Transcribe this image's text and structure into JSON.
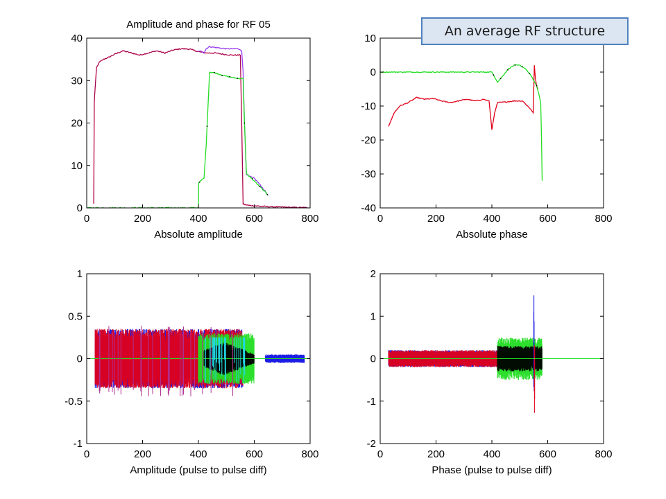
{
  "callout": {
    "text": "An average RF structure"
  },
  "colors": {
    "red": "#e0001a",
    "blue": "#1010e6",
    "green": "#22dd22",
    "purple": "#9a3cf0",
    "black": "#000000",
    "cyan": "#22d6e6",
    "magenta": "#b03090"
  },
  "chart_data": [
    {
      "type": "line",
      "title": "Amplitude and phase for RF 05",
      "xlabel": "Absolute amplitude",
      "ylabel": "",
      "xlim": [
        0,
        800
      ],
      "ylim": [
        0,
        40
      ],
      "xticks": [
        0,
        200,
        400,
        600,
        800
      ],
      "yticks": [
        0,
        10,
        20,
        30,
        40
      ],
      "grid": false,
      "series": [
        {
          "color": "#e0001a",
          "x": [
            25,
            27,
            35,
            45,
            60,
            80,
            100,
            130,
            160,
            190,
            220,
            250,
            280,
            310,
            340,
            370,
            400,
            430,
            460,
            490,
            520,
            550,
            555,
            560,
            565,
            580,
            600,
            650,
            700,
            750,
            790
          ],
          "values": [
            1,
            25,
            33,
            34.3,
            35,
            35.5,
            36.2,
            37,
            36.5,
            36,
            36.5,
            37,
            36.5,
            37.2,
            37.5,
            37.4,
            36.8,
            36.5,
            36.5,
            36.2,
            36,
            36,
            20,
            1,
            0.8,
            0.6,
            0.5,
            0.3,
            0.2,
            0.1,
            0.1
          ]
        },
        {
          "color": "#9a3cf0",
          "x": [
            400,
            410,
            420,
            428,
            440,
            460,
            500,
            540,
            555,
            560,
            565,
            572,
            580,
            600,
            620,
            650
          ],
          "values": [
            36.8,
            37,
            36.5,
            37.5,
            38,
            37.8,
            37.5,
            37.5,
            37,
            32,
            20,
            8,
            7.5,
            7,
            5.5,
            3
          ]
        },
        {
          "color": "#22dd22",
          "x": [
            0,
            400,
            401,
            420,
            428,
            440,
            460,
            500,
            540,
            560,
            565,
            572,
            590,
            620,
            650
          ],
          "values": [
            0,
            0,
            6,
            7,
            15,
            32,
            31.8,
            31,
            30.5,
            30.5,
            20,
            8,
            7,
            5,
            3
          ]
        }
      ]
    },
    {
      "type": "line",
      "title": "",
      "xlabel": "Absolute phase",
      "ylabel": "",
      "xlim": [
        0,
        800
      ],
      "ylim": [
        -40,
        10
      ],
      "xticks": [
        0,
        200,
        400,
        600,
        800
      ],
      "yticks": [
        -40,
        -30,
        -20,
        -10,
        0,
        10
      ],
      "grid": false,
      "series": [
        {
          "color": "#e0001a",
          "x": [
            30,
            50,
            70,
            100,
            130,
            160,
            190,
            220,
            250,
            280,
            310,
            340,
            370,
            390,
            400,
            410,
            420,
            450,
            480,
            510,
            540,
            548,
            552,
            556,
            560,
            565
          ],
          "values": [
            -16,
            -12,
            -10,
            -9,
            -7.5,
            -8,
            -7.8,
            -8.5,
            -9,
            -8.5,
            -8,
            -8.5,
            -8,
            -8.5,
            -17,
            -12,
            -9,
            -8.8,
            -8.5,
            -8.5,
            -11,
            -12,
            2,
            -2,
            -4,
            -5
          ]
        },
        {
          "color": "#22dd22",
          "x": [
            0,
            400,
            420,
            440,
            460,
            480,
            500,
            520,
            540,
            560,
            570,
            575,
            578,
            580
          ],
          "values": [
            0,
            0,
            -3,
            -1,
            1,
            2,
            2,
            1,
            -1,
            -4,
            -7,
            -9,
            -20,
            -32
          ]
        }
      ]
    },
    {
      "type": "line",
      "title": "",
      "xlabel": "Amplitude (pulse to pulse diff)",
      "ylabel": "",
      "xlim": [
        0,
        800
      ],
      "ylim": [
        -1,
        1
      ],
      "xticks": [
        0,
        200,
        400,
        600,
        800
      ],
      "yticks": [
        -1,
        -0.5,
        0,
        0.5,
        1
      ],
      "grid": false,
      "series": [
        {
          "color": "#1010e6",
          "x": [
            30,
            560
          ],
          "values": [
            -0.35,
            0.35
          ]
        },
        {
          "color": "#e0001a",
          "x": [
            30,
            560
          ],
          "values": [
            -0.35,
            0.35
          ]
        },
        {
          "color": "#22dd22",
          "x": [
            400,
            600
          ],
          "values": [
            -0.3,
            0.3
          ]
        },
        {
          "color": "#000000",
          "x": [
            420,
            600
          ],
          "values": [
            -0.2,
            0.2
          ]
        },
        {
          "color": "#1010e6",
          "x": [
            640,
            780
          ],
          "values": [
            -0.05,
            0.05
          ]
        }
      ]
    },
    {
      "type": "line",
      "title": "",
      "xlabel": "Phase (pulse to pulse diff)",
      "ylabel": "",
      "xlim": [
        0,
        800
      ],
      "ylim": [
        -2,
        2
      ],
      "xticks": [
        0,
        200,
        400,
        600,
        800
      ],
      "yticks": [
        -2,
        -1,
        0,
        1,
        2
      ],
      "grid": false,
      "series": [
        {
          "color": "#1010e6",
          "x": [
            30,
            420
          ],
          "values": [
            -0.2,
            0.2
          ]
        },
        {
          "color": "#e0001a",
          "x": [
            30,
            420
          ],
          "values": [
            -0.2,
            0.2
          ]
        },
        {
          "color": "#22dd22",
          "x": [
            420,
            580
          ],
          "values": [
            -0.5,
            0.5
          ]
        },
        {
          "color": "#000000",
          "x": [
            420,
            580
          ],
          "values": [
            -0.3,
            0.3
          ]
        },
        {
          "color": "#1010e6",
          "x": [
            550,
            552
          ],
          "values": [
            -0.9,
            1.5
          ]
        },
        {
          "color": "#e0001a",
          "x": [
            552,
            554
          ],
          "values": [
            -1.35,
            0.5
          ]
        }
      ]
    }
  ]
}
